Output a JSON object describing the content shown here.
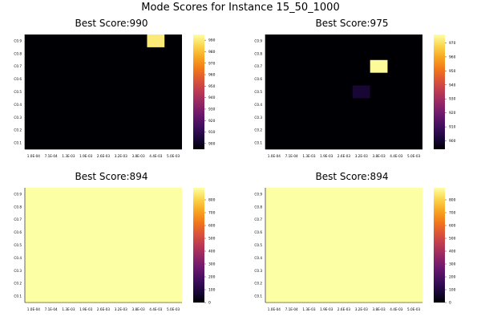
{
  "figure": {
    "title": "Mode Scores for Instance 15_50_1000"
  },
  "chart_data": [
    {
      "type": "heatmap",
      "title": "Best Score:990",
      "x_categories": [
        "1.0E-04",
        "7.1E-04",
        "1.3E-03",
        "1.9E-03",
        "2.6E-03",
        "3.2E-03",
        "3.8E-03",
        "4.4E-03",
        "5.0E-03"
      ],
      "y_categories": [
        "C0.1",
        "C0.2",
        "C0.3",
        "C0.4",
        "C0.5",
        "C0.6",
        "C0.7",
        "C0.8",
        "C0.9"
      ],
      "colorbar": {
        "min": 895,
        "max": 995,
        "ticks": [
          900,
          910,
          920,
          930,
          940,
          950,
          960,
          970,
          980,
          990
        ]
      },
      "background_value": 894,
      "cells": [
        {
          "x": "4.4E-03",
          "y": "C0.9",
          "value": 990
        }
      ],
      "colormap": "inferno"
    },
    {
      "type": "heatmap",
      "title": "Best Score:975",
      "x_categories": [
        "1.0E-04",
        "7.1E-04",
        "1.3E-03",
        "1.9E-03",
        "2.6E-03",
        "3.2E-03",
        "3.8E-03",
        "4.4E-03",
        "5.0E-03"
      ],
      "y_categories": [
        "C0.1",
        "C0.2",
        "C0.3",
        "C0.4",
        "C0.5",
        "C0.6",
        "C0.7",
        "C0.8",
        "C0.9"
      ],
      "colorbar": {
        "min": 894,
        "max": 976,
        "ticks": [
          900,
          910,
          920,
          930,
          940,
          950,
          960,
          970
        ]
      },
      "background_value": 894,
      "cells": [
        {
          "x": "3.8E-03",
          "y": "C0.7",
          "value": 975
        },
        {
          "x": "3.2E-03",
          "y": "C0.5",
          "value": 901
        }
      ],
      "colormap": "inferno"
    },
    {
      "type": "heatmap",
      "title": "Best Score:894",
      "x_categories": [
        "1.0E-04",
        "7.1E-04",
        "1.3E-03",
        "1.9E-03",
        "2.6E-03",
        "3.2E-03",
        "3.8E-03",
        "4.4E-03",
        "5.0E-03"
      ],
      "y_categories": [
        "C0.1",
        "C0.2",
        "C0.3",
        "C0.4",
        "C0.5",
        "C0.6",
        "C0.7",
        "C0.8",
        "C0.9"
      ],
      "colorbar": {
        "min": 0,
        "max": 894,
        "ticks": [
          0,
          100,
          200,
          300,
          400,
          500,
          600,
          700,
          800
        ]
      },
      "background_value": 894,
      "cells": [],
      "colormap": "inferno"
    },
    {
      "type": "heatmap",
      "title": "Best Score:894",
      "x_categories": [
        "1.0E-04",
        "7.1E-04",
        "1.3E-03",
        "1.9E-03",
        "2.6E-03",
        "3.2E-03",
        "3.8E-03",
        "4.4E-03",
        "5.0E-03"
      ],
      "y_categories": [
        "C0.1",
        "C0.2",
        "C0.3",
        "C0.4",
        "C0.5",
        "C0.6",
        "C0.7",
        "C0.8",
        "C0.9"
      ],
      "colorbar": {
        "min": 0,
        "max": 894,
        "ticks": [
          0,
          100,
          200,
          300,
          400,
          500,
          600,
          700,
          800
        ]
      },
      "background_value": 894,
      "cells": [],
      "colormap": "inferno"
    }
  ]
}
